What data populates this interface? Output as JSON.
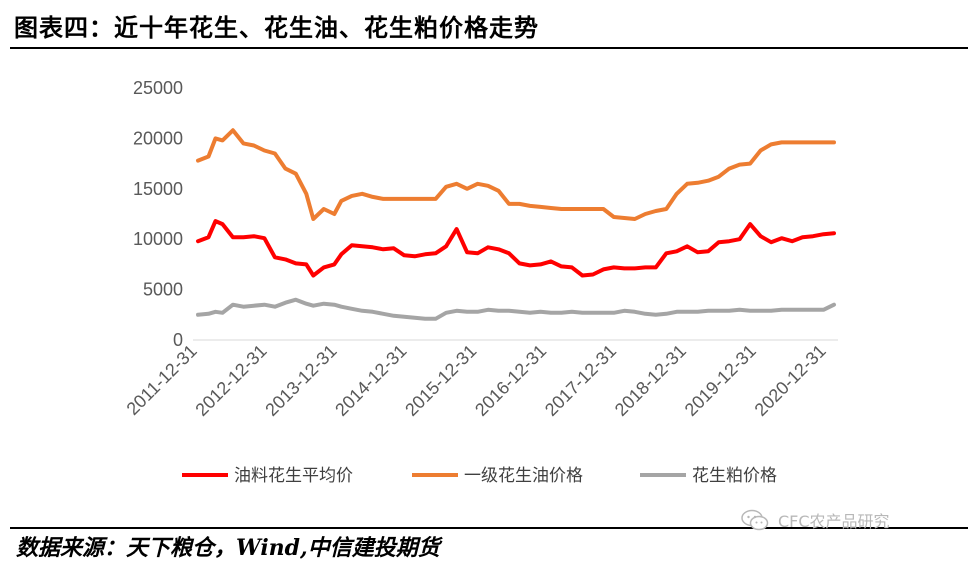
{
  "header": {
    "title": "图表四：近十年花生、花生油、花生粕价格走势"
  },
  "footer": {
    "source": "数据来源：天下粮仓，Wind,中信建投期货"
  },
  "watermark": {
    "text": "CFC农产品研究"
  },
  "colors": {
    "oil": "#ff0000",
    "peanut_oil": "#ed7d31",
    "meal": "#a5a5a5",
    "axis_text": "#595959"
  },
  "chart_data": {
    "type": "line",
    "title": "",
    "xlabel": "",
    "ylabel": "",
    "ylim": [
      0,
      25000
    ],
    "yticks": [
      0,
      5000,
      10000,
      15000,
      20000,
      25000
    ],
    "x_tick_labels": [
      "2011-12-31",
      "2012-12-31",
      "2013-12-31",
      "2014-12-31",
      "2015-12-31",
      "2016-12-31",
      "2017-12-31",
      "2018-12-31",
      "2019-12-31",
      "2020-12-31"
    ],
    "grid": false,
    "legend_position": "bottom",
    "x": [
      2011.95,
      2012.1,
      2012.2,
      2012.3,
      2012.45,
      2012.6,
      2012.75,
      2012.9,
      2013.05,
      2013.2,
      2013.35,
      2013.5,
      2013.6,
      2013.75,
      2013.9,
      2014.0,
      2014.15,
      2014.3,
      2014.45,
      2014.6,
      2014.75,
      2014.9,
      2015.05,
      2015.2,
      2015.35,
      2015.5,
      2015.65,
      2015.8,
      2015.95,
      2016.1,
      2016.25,
      2016.4,
      2016.55,
      2016.7,
      2016.85,
      2017.0,
      2017.15,
      2017.3,
      2017.45,
      2017.6,
      2017.75,
      2017.9,
      2018.05,
      2018.2,
      2018.35,
      2018.5,
      2018.65,
      2018.8,
      2018.95,
      2019.1,
      2019.25,
      2019.4,
      2019.55,
      2019.7,
      2019.85,
      2020.0,
      2020.15,
      2020.3,
      2020.45,
      2020.6,
      2020.75,
      2020.9,
      2021.05
    ],
    "series": [
      {
        "name": "油料花生平均价",
        "color_key": "oil",
        "values": [
          9800,
          10200,
          11800,
          11500,
          10200,
          10200,
          10300,
          10100,
          8200,
          8000,
          7600,
          7500,
          6400,
          7200,
          7500,
          8500,
          9400,
          9300,
          9200,
          9000,
          9100,
          8400,
          8300,
          8500,
          8600,
          9300,
          11000,
          8700,
          8600,
          9200,
          9000,
          8600,
          7600,
          7400,
          7500,
          7800,
          7300,
          7200,
          6400,
          6500,
          7000,
          7200,
          7100,
          7100,
          7200,
          7200,
          8600,
          8800,
          9300,
          8700,
          8800,
          9700,
          9800,
          10000,
          11500,
          10300,
          9700,
          10100,
          9800,
          10200,
          10300,
          10500,
          10600
        ]
      },
      {
        "name": "一级花生油价格",
        "color_key": "peanut_oil",
        "values": [
          17800,
          18200,
          20000,
          19800,
          20800,
          19500,
          19300,
          18800,
          18500,
          17000,
          16500,
          14500,
          12000,
          13000,
          12500,
          13800,
          14300,
          14500,
          14200,
          14000,
          14000,
          14000,
          14000,
          14000,
          14000,
          15200,
          15500,
          15000,
          15500,
          15300,
          14800,
          13500,
          13500,
          13300,
          13200,
          13100,
          13000,
          13000,
          13000,
          13000,
          13000,
          12200,
          12100,
          12000,
          12500,
          12800,
          13000,
          14500,
          15500,
          15600,
          15800,
          16200,
          17000,
          17400,
          17500,
          18800,
          19400,
          19600,
          19600,
          19600,
          19600,
          19600,
          19600
        ]
      },
      {
        "name": "花生粕价格",
        "color_key": "meal",
        "values": [
          2500,
          2600,
          2800,
          2700,
          3500,
          3300,
          3400,
          3500,
          3300,
          3700,
          4000,
          3600,
          3400,
          3600,
          3500,
          3300,
          3100,
          2900,
          2800,
          2600,
          2400,
          2300,
          2200,
          2100,
          2100,
          2700,
          2900,
          2800,
          2800,
          3000,
          2900,
          2900,
          2800,
          2700,
          2800,
          2700,
          2700,
          2800,
          2700,
          2700,
          2700,
          2700,
          2900,
          2800,
          2600,
          2500,
          2600,
          2800,
          2800,
          2800,
          2900,
          2900,
          2900,
          3000,
          2900,
          2900,
          2900,
          3000,
          3000,
          3000,
          3000,
          3000,
          3500
        ]
      }
    ]
  }
}
